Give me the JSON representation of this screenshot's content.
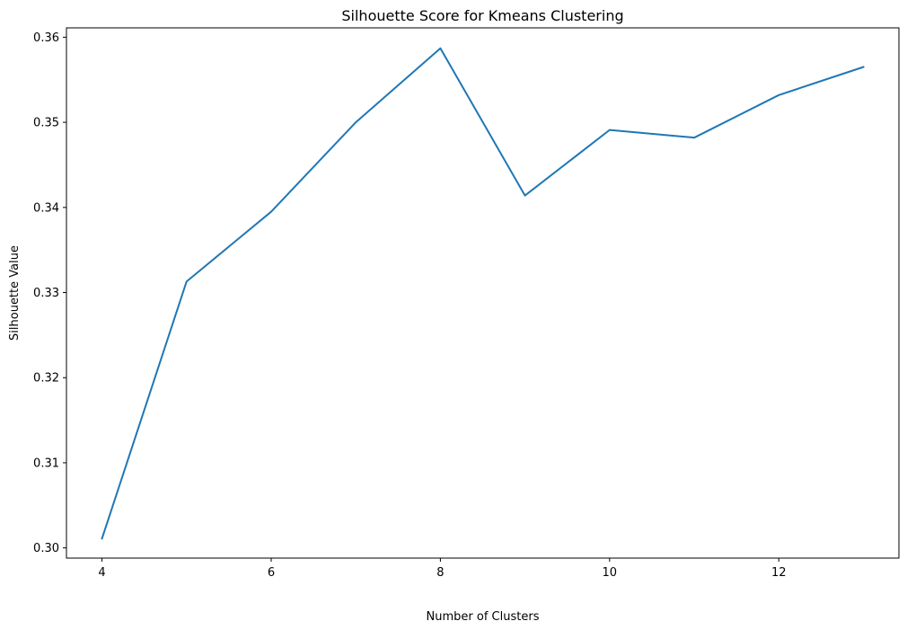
{
  "chart_data": {
    "type": "line",
    "title": "Silhouette Score for Kmeans Clustering",
    "xlabel": "Number of Clusters",
    "ylabel": "Silhouette Value",
    "xlim": [
      3.58,
      13.42
    ],
    "ylim": [
      0.2988,
      0.3611
    ],
    "xticks": [
      4,
      6,
      8,
      10,
      12
    ],
    "xtick_labels": [
      "4",
      "6",
      "8",
      "10",
      "12"
    ],
    "yticks": [
      0.3,
      0.31,
      0.32,
      0.33,
      0.34,
      0.35,
      0.36
    ],
    "ytick_labels": [
      "0.30",
      "0.31",
      "0.32",
      "0.33",
      "0.34",
      "0.35",
      "0.36"
    ],
    "grid": false,
    "series": [
      {
        "color": "#1f77b4",
        "x": [
          4,
          5,
          6,
          7,
          8,
          9,
          10,
          11,
          12,
          13
        ],
        "values": [
          0.3011,
          0.3313,
          0.3395,
          0.35,
          0.3587,
          0.3414,
          0.3491,
          0.3482,
          0.3532,
          0.3565
        ]
      }
    ]
  }
}
